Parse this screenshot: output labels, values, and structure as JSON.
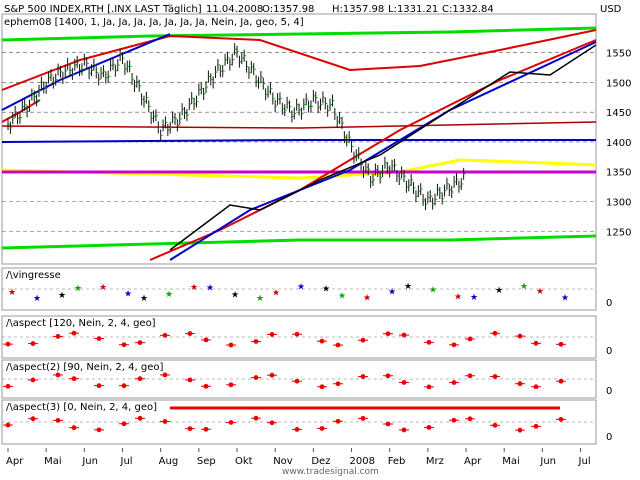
{
  "header": {
    "symbol": "S&P 500 INDEX,RTH [.INX LAST Täglich]",
    "date": "11.04.2008",
    "open": "O:1357.98",
    "high": "H:1357.98",
    "low": "L:1331.21",
    "close": "C:1332.84",
    "currency": "USD"
  },
  "indicator_main": "ephem08 [1400, 1, Ja, Ja, Ja, Ja, Ja, Ja, Ja, Nein, Ja, geo, 5, 4]",
  "panels": [
    {
      "label": "vingresse",
      "ticks": [
        "0"
      ]
    },
    {
      "label": "aspect [120, Nein, 2, 4, geo]",
      "ticks": [
        "0"
      ]
    },
    {
      "label": "aspect(2) [90, Nein, 2, 4, geo]",
      "ticks": [
        "0"
      ]
    },
    {
      "label": "aspect(3) [0, Nein, 2, 4, geo]",
      "ticks": [
        "0"
      ]
    }
  ],
  "x_labels": [
    "Apr",
    "Mai",
    "Jun",
    "Jul",
    "Aug",
    "Sep",
    "Okt",
    "Nov",
    "Dez",
    "2008",
    "Feb",
    "Mrz",
    "Apr",
    "Mai",
    "Jun",
    "Jul"
  ],
  "watermark": "www.tradesignal.com",
  "colors": {
    "up": "#00aa00",
    "down": "#00aa00",
    "close": "#00aa00",
    "trend_red": "#dd0000",
    "trend_blue": "#0000cc",
    "band_green": "#00dd00",
    "band_yellow": "#ffff00",
    "band_magenta": "#cc00cc"
  },
  "chart_data": {
    "type": "line",
    "title": "S&P 500 INDEX,RTH [.INX LAST Täglich]",
    "y_ticks": [
      1250,
      1300,
      1350,
      1400,
      1450,
      1500,
      1550
    ],
    "ylim": [
      1195,
      1615
    ],
    "x_categories": [
      "Apr",
      "Mai",
      "Jun",
      "Jul",
      "Aug",
      "Sep",
      "Okt",
      "Nov",
      "Dez",
      "2008",
      "Feb",
      "Mrz",
      "Apr",
      "Mai",
      "Jun",
      "Jul"
    ],
    "price_series": {
      "name": "S&P 500",
      "x_months": [
        0,
        0.5,
        1,
        1.5,
        2,
        2.5,
        3,
        3.5,
        4,
        4.5,
        5,
        5.5,
        6,
        6.5,
        7,
        7.5,
        8,
        8.5,
        9,
        9.5,
        10,
        10.5,
        11,
        11.5,
        12
      ],
      "values": [
        1430,
        1460,
        1500,
        1520,
        1530,
        1510,
        1540,
        1480,
        1420,
        1440,
        1480,
        1520,
        1550,
        1510,
        1470,
        1450,
        1470,
        1460,
        1390,
        1340,
        1360,
        1330,
        1300,
        1320,
        1340
      ]
    }
  }
}
